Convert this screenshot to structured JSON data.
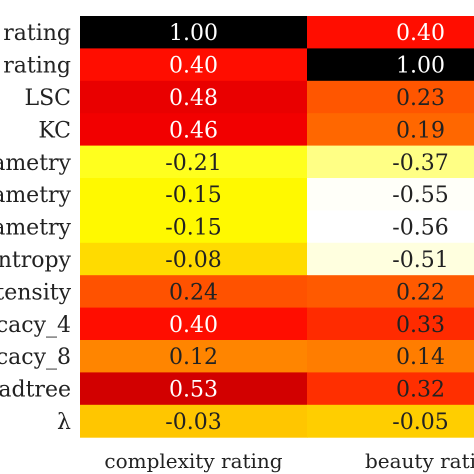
{
  "chart_data": {
    "type": "heatmap",
    "columns": [
      "complexity rating",
      "beauty rati"
    ],
    "rows": [
      "rating",
      "rating",
      "LSC",
      "KC",
      "ametry",
      "ametry",
      "ametry",
      "ntropy",
      "tensity",
      "cacy_4",
      "cacy_8",
      "adtree",
      "λ"
    ],
    "values": [
      [
        1.0,
        0.4
      ],
      [
        0.4,
        1.0
      ],
      [
        0.48,
        0.23
      ],
      [
        0.46,
        0.19
      ],
      [
        -0.21,
        -0.37
      ],
      [
        -0.15,
        -0.55
      ],
      [
        -0.15,
        -0.56
      ],
      [
        -0.08,
        -0.51
      ],
      [
        0.24,
        0.22
      ],
      [
        0.4,
        0.33
      ],
      [
        0.12,
        0.14
      ],
      [
        0.53,
        0.32
      ],
      [
        -0.03,
        -0.05
      ]
    ],
    "cell_labels": [
      [
        "1.00",
        "0.40"
      ],
      [
        "0.40",
        "1.00"
      ],
      [
        "0.48",
        "0.23"
      ],
      [
        "0.46",
        "0.19"
      ],
      [
        "-0.21",
        "-0.37"
      ],
      [
        "-0.15",
        "-0.55"
      ],
      [
        "-0.15",
        "-0.56"
      ],
      [
        "-0.08",
        "-0.51"
      ],
      [
        "0.24",
        "0.22"
      ],
      [
        "0.40",
        "0.33"
      ],
      [
        "0.12",
        "0.14"
      ],
      [
        "0.53",
        "0.32"
      ],
      [
        "-0.03",
        "-0.05"
      ]
    ],
    "colormap": "hot_r",
    "grid": false
  }
}
